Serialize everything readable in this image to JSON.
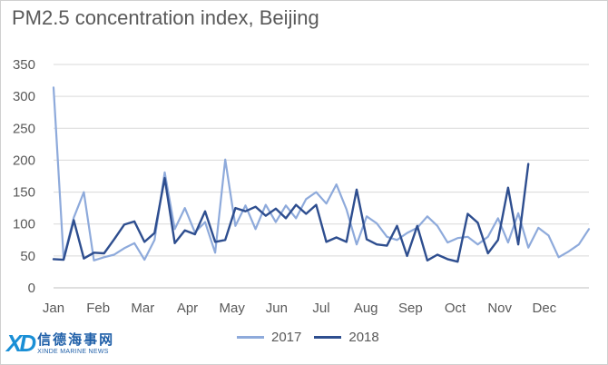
{
  "chart_data": {
    "type": "line",
    "title": "PM2.5 concentration index, Beijing",
    "xlabel": "",
    "ylabel": "",
    "ylim": [
      0,
      350
    ],
    "yticks": [
      0,
      50,
      100,
      150,
      200,
      250,
      300,
      350
    ],
    "grid": true,
    "legend_position": "bottom",
    "month_labels": [
      "Jan",
      "Feb",
      "Mar",
      "Apr",
      "May",
      "Jun",
      "Jul",
      "Aug",
      "Sep",
      "Oct",
      "Nov",
      "Dec"
    ],
    "series": [
      {
        "name": "2017",
        "color": "#8eaadb",
        "values": [
          314,
          46,
          110,
          150,
          43,
          48,
          52,
          62,
          70,
          44,
          75,
          181,
          92,
          125,
          87,
          103,
          55,
          201,
          97,
          129,
          92,
          130,
          103,
          129,
          109,
          139,
          150,
          132,
          162,
          123,
          68,
          112,
          101,
          80,
          75,
          86,
          94,
          112,
          97,
          71,
          78,
          80,
          68,
          80,
          109,
          71,
          117,
          63,
          94,
          82,
          48,
          57,
          68,
          92
        ]
      },
      {
        "name": "2018",
        "color": "#2e4e8f",
        "values": [
          45,
          44,
          106,
          46,
          55,
          54,
          76,
          99,
          104,
          72,
          86,
          172,
          70,
          90,
          84,
          120,
          72,
          75,
          125,
          120,
          127,
          113,
          124,
          109,
          130,
          116,
          130,
          72,
          79,
          72,
          154,
          76,
          68,
          66,
          97,
          50,
          97,
          43,
          52,
          45,
          41,
          116,
          102,
          54,
          75,
          157,
          68,
          194
        ]
      }
    ]
  },
  "logo": {
    "mark": "XD",
    "name_cn": "信德海事网",
    "name_en": "XINDE MARINE NEWS"
  }
}
